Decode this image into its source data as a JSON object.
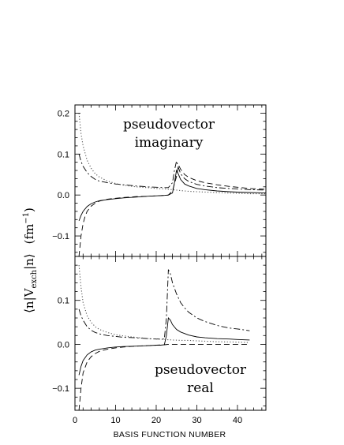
{
  "chart_data": [
    {
      "type": "line",
      "panel": "top",
      "title": "",
      "annotation": [
        "pseudovector",
        "imaginary"
      ],
      "xlim": [
        0,
        47
      ],
      "ylim": [
        -0.15,
        0.22
      ],
      "yticks": [
        0.2,
        0.1,
        0.0,
        -0.1
      ],
      "ytick_labels": [
        "0.2",
        "0.1",
        "0.0",
        "−0.1"
      ],
      "series": [
        {
          "style": "solid",
          "x": [
            1,
            1.5,
            2,
            3,
            4,
            5,
            6,
            8,
            10,
            12,
            15,
            18,
            20,
            22,
            23,
            24,
            24.5,
            25,
            25.5,
            26,
            27,
            28,
            30,
            32,
            35,
            38,
            40,
            43,
            47
          ],
          "y": [
            -0.063,
            -0.05,
            -0.04,
            -0.028,
            -0.021,
            -0.017,
            -0.014,
            -0.011,
            -0.009,
            -0.007,
            -0.005,
            -0.003,
            -0.002,
            -0.001,
            0,
            0.005,
            0.03,
            0.06,
            0.05,
            0.038,
            0.027,
            0.022,
            0.016,
            0.013,
            0.01,
            0.008,
            0.007,
            0.006,
            0.005
          ]
        },
        {
          "style": "dashed",
          "x": [
            1,
            1.5,
            2,
            2.5,
            3,
            4,
            5,
            6,
            8,
            10,
            12,
            15,
            18,
            20,
            22,
            23,
            24,
            25,
            25.5,
            26,
            27,
            28,
            30,
            32,
            35,
            38,
            40,
            43,
            47
          ],
          "y": [
            -0.15,
            -0.1,
            -0.07,
            -0.052,
            -0.04,
            -0.027,
            -0.02,
            -0.015,
            -0.01,
            -0.008,
            -0.006,
            -0.004,
            -0.003,
            -0.002,
            -0.001,
            0,
            0.01,
            0.045,
            0.073,
            0.063,
            0.05,
            0.043,
            0.035,
            0.03,
            0.025,
            0.021,
            0.019,
            0.016,
            0.014
          ]
        },
        {
          "style": "dashdot",
          "x": [
            1,
            1.5,
            2,
            3,
            4,
            5,
            6,
            8,
            10,
            12,
            15,
            18,
            20,
            22,
            23,
            24,
            24.5,
            25,
            25.5,
            26,
            27,
            28,
            30,
            32,
            35,
            38,
            40,
            43,
            47
          ],
          "y": [
            0.1,
            0.082,
            0.07,
            0.055,
            0.045,
            0.038,
            0.034,
            0.03,
            0.027,
            0.025,
            0.022,
            0.02,
            0.019,
            0.018,
            0.018,
            0.03,
            0.06,
            0.083,
            0.066,
            0.052,
            0.04,
            0.033,
            0.026,
            0.022,
            0.018,
            0.016,
            0.015,
            0.013,
            0.012
          ]
        },
        {
          "style": "dotted",
          "x": [
            1,
            1.5,
            2,
            3,
            4,
            5,
            6,
            8,
            10,
            12,
            15,
            18,
            20,
            22,
            23,
            24,
            25,
            26,
            28,
            30,
            35,
            40,
            43,
            47
          ],
          "y": [
            0.2,
            0.15,
            0.12,
            0.085,
            0.065,
            0.052,
            0.044,
            0.034,
            0.028,
            0.024,
            0.02,
            0.018,
            0.016,
            0.015,
            0.014,
            0.013,
            0.012,
            0.011,
            0.009,
            0.008,
            0.006,
            0.004,
            0.003,
            0.003
          ]
        }
      ]
    },
    {
      "type": "line",
      "panel": "bottom",
      "title": "",
      "annotation": [
        "pseudovector",
        "real"
      ],
      "xlim": [
        0,
        47
      ],
      "ylim": [
        -0.15,
        0.2
      ],
      "xticks": [
        0,
        10,
        20,
        30,
        40
      ],
      "xtick_labels": [
        "0",
        "10",
        "20",
        "30",
        "40"
      ],
      "yticks": [
        0.1,
        0.0,
        -0.1
      ],
      "ytick_labels": [
        "0.1",
        "0.0",
        "−0.1"
      ],
      "xlabel": "BASIS FUNCTION NUMBER",
      "series": [
        {
          "style": "solid",
          "x": [
            1,
            1.5,
            2,
            3,
            4,
            5,
            6,
            8,
            10,
            12,
            15,
            18,
            20,
            21,
            22,
            22.5,
            23,
            23.5,
            24,
            25,
            26,
            28,
            30,
            32,
            35,
            38,
            40,
            43
          ],
          "y": [
            -0.07,
            -0.05,
            -0.037,
            -0.024,
            -0.017,
            -0.013,
            -0.011,
            -0.008,
            -0.006,
            -0.005,
            -0.004,
            -0.003,
            -0.002,
            -0.002,
            -0.001,
            0.02,
            0.06,
            0.055,
            0.045,
            0.034,
            0.028,
            0.021,
            0.017,
            0.015,
            0.013,
            0.012,
            0.011,
            0.01
          ]
        },
        {
          "style": "dashed",
          "x": [
            1,
            1.5,
            2,
            3,
            4,
            5,
            6,
            8,
            10,
            12,
            15,
            18,
            20,
            22,
            23,
            24,
            26,
            28,
            30,
            35,
            40,
            43
          ],
          "y": [
            -0.15,
            -0.1,
            -0.065,
            -0.04,
            -0.028,
            -0.021,
            -0.016,
            -0.011,
            -0.008,
            -0.006,
            -0.004,
            -0.003,
            -0.002,
            -0.001,
            0,
            0,
            0,
            0,
            0,
            0,
            0,
            0
          ]
        },
        {
          "style": "dashdot",
          "x": [
            1,
            1.5,
            2,
            3,
            4,
            5,
            6,
            8,
            10,
            12,
            15,
            18,
            20,
            21,
            22,
            22.5,
            23,
            23.5,
            24,
            25,
            26,
            27,
            28,
            30,
            32,
            35,
            38,
            40,
            43
          ],
          "y": [
            0.08,
            0.065,
            0.055,
            0.04,
            0.032,
            0.027,
            0.024,
            0.02,
            0.018,
            0.016,
            0.015,
            0.013,
            0.012,
            0.012,
            0.012,
            0.06,
            0.17,
            0.16,
            0.14,
            0.115,
            0.095,
            0.083,
            0.073,
            0.06,
            0.052,
            0.043,
            0.037,
            0.035,
            0.031
          ]
        },
        {
          "style": "dotted",
          "x": [
            1,
            1.5,
            2,
            3,
            4,
            5,
            6,
            8,
            10,
            12,
            15,
            18,
            20,
            22,
            24,
            26,
            28,
            30,
            35,
            40,
            43
          ],
          "y": [
            0.18,
            0.13,
            0.095,
            0.065,
            0.05,
            0.04,
            0.034,
            0.027,
            0.022,
            0.019,
            0.016,
            0.013,
            0.012,
            0.011,
            0.01,
            0.009,
            0.009,
            0.008,
            0.006,
            0.005,
            0.004
          ]
        }
      ]
    }
  ],
  "ylabel": {
    "prefix": "⟨n|V",
    "subscript": "exch",
    "suffix": "|n⟩",
    "units": "(fm",
    "units_sup": "−1",
    "units_close": ")"
  }
}
